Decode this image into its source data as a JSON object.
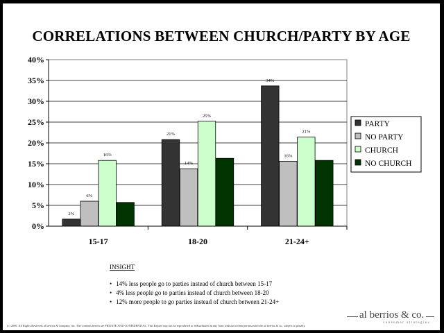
{
  "chart_data": {
    "type": "bar",
    "title": "CORRELATIONS BETWEEN CHURCH/PARTY BY AGE",
    "categories": [
      "15-17",
      "18-20",
      "21-24+"
    ],
    "series": [
      {
        "name": "PARTY",
        "color": "#333333",
        "values": [
          2,
          21,
          34
        ],
        "labels": [
          "2%",
          "21%",
          "34%"
        ],
        "plotted": [
          1.7,
          20.8,
          33.7
        ]
      },
      {
        "name": "NO PARTY",
        "color": "#bfbfbf",
        "values": [
          6,
          14,
          16
        ],
        "labels": [
          "6%",
          "14%",
          "16%"
        ],
        "plotted": [
          6.0,
          13.8,
          15.6
        ]
      },
      {
        "name": "CHURCH",
        "color": "#ccffcc",
        "values": [
          16,
          25,
          21
        ],
        "labels": [
          "16%",
          "25%",
          "21%"
        ],
        "plotted": [
          15.8,
          25.2,
          21.4
        ]
      },
      {
        "name": "NO CHURCH",
        "color": "#003300",
        "values": [
          6,
          16,
          16
        ],
        "labels": [
          "",
          "",
          ""
        ],
        "plotted": [
          5.7,
          16.3,
          15.8
        ]
      }
    ],
    "y_ticks": [
      "0%",
      "5%",
      "10%",
      "15%",
      "20%",
      "25%",
      "30%",
      "35%",
      "40%"
    ],
    "ylim": [
      0,
      40
    ],
    "grid": true,
    "legend_position": "right"
  },
  "insight": {
    "title": "INSIGHT",
    "bullets": [
      "14% less people go to parties instead of church between 15-17",
      "4% less people go to parties instead of church between 18-20",
      "12% more people to go parties instead of church between 21-24+"
    ]
  },
  "logo": {
    "name": "al berrios & co.",
    "tagline": "consumer strategies"
  },
  "footer": "(c) 2006. All Rights Reserved. al berrios & company, inc. The contents herein are PRIVATE AND CONFIDENTIAL. This Report may not be reproduced or redistributed in any form without written permission from al berrios & co., subject to penalty."
}
